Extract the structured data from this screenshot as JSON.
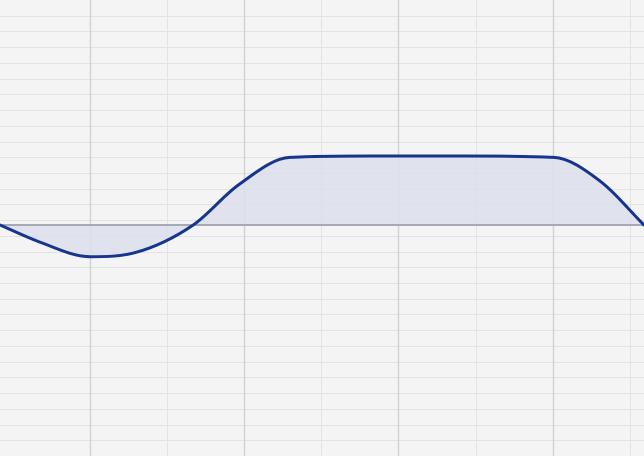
{
  "colors": {
    "background": "#f4f4f4",
    "grid_fine": "#e3e3e3",
    "grid_major": "#cfd3d8",
    "zero_line": "#a7a9b4",
    "curve_stroke": "#16358f",
    "curve_fill": "#dcdfeb"
  },
  "grid": {
    "vertical_lines": 8,
    "horizontal_lines": 28
  },
  "curve": {
    "kind": "eq-response",
    "baseline": 0,
    "points": [
      [
        0.0,
        0.0
      ],
      [
        0.06,
        -0.24
      ],
      [
        0.14,
        -0.46
      ],
      [
        0.21,
        -0.4
      ],
      [
        0.3,
        0.0
      ],
      [
        0.37,
        0.58
      ],
      [
        0.45,
        0.98
      ],
      [
        0.58,
        1.0
      ],
      [
        0.72,
        1.0
      ],
      [
        0.86,
        0.98
      ],
      [
        0.93,
        0.65
      ],
      [
        1.0,
        0.0
      ]
    ]
  }
}
